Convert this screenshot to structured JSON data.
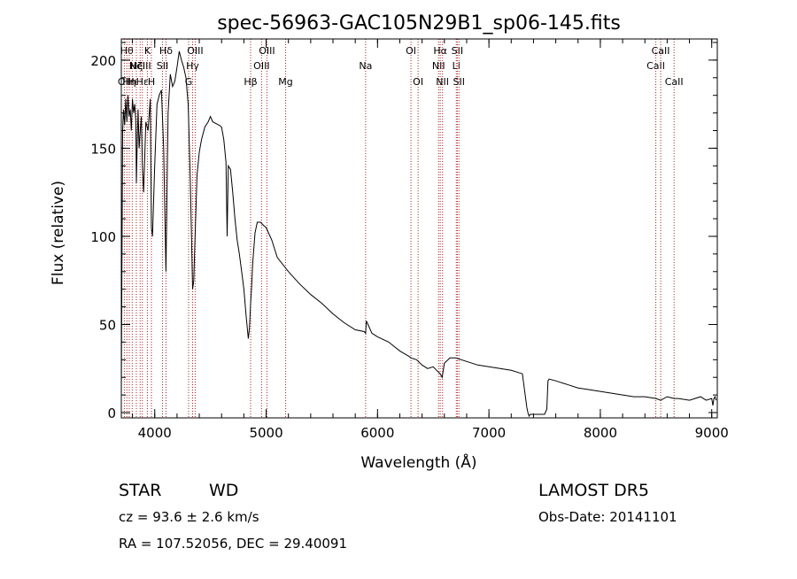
{
  "chart_data": {
    "type": "line",
    "title": "spec-56963-GAC105N29B1_sp06-145.fits",
    "xlabel": "Wavelength (Å)",
    "ylabel": "Flux (relative)",
    "xlim": [
      3700,
      9050
    ],
    "ylim": [
      -3,
      212
    ],
    "xticks": [
      4000,
      5000,
      6000,
      7000,
      8000,
      9000
    ],
    "yticks": [
      0,
      50,
      100,
      150,
      200
    ],
    "xminor_step": 200,
    "yminor_step": 10,
    "series": [
      {
        "x": [
          3700,
          3705,
          3712,
          3720,
          3730,
          3740,
          3750,
          3760,
          3770,
          3780,
          3790,
          3800,
          3810,
          3820,
          3830,
          3835,
          3840,
          3850,
          3860,
          3870,
          3880,
          3889,
          3900,
          3920,
          3940,
          3960,
          3970,
          3980,
          4000,
          4020,
          4040,
          4060,
          4080,
          4101,
          4120,
          4140,
          4160,
          4180,
          4200,
          4220,
          4240,
          4260,
          4280,
          4300,
          4320,
          4340,
          4350,
          4360,
          4380,
          4400,
          4420,
          4450,
          4480,
          4500,
          4520,
          4550,
          4580,
          4600,
          4620,
          4640,
          4650,
          4660,
          4680,
          4700,
          4720,
          4740,
          4760,
          4780,
          4800,
          4820,
          4840,
          4850,
          4861,
          4870,
          4880,
          4900,
          4920,
          4950,
          4980,
          5000,
          5050,
          5100,
          5200,
          5300,
          5400,
          5500,
          5600,
          5700,
          5800,
          5880,
          5893,
          5900,
          5950,
          6000,
          6100,
          6200,
          6280,
          6300,
          6350,
          6400,
          6450,
          6500,
          6530,
          6563,
          6580,
          6600,
          6650,
          6700,
          6800,
          6900,
          7000,
          7100,
          7200,
          7300,
          7340,
          7350,
          7360,
          7370,
          7380,
          7400,
          7450,
          7500,
          7520,
          7530,
          7540,
          7600,
          7700,
          7800,
          7900,
          8000,
          8100,
          8200,
          8300,
          8400,
          8500,
          8542,
          8600,
          8662,
          8700,
          8800,
          8850,
          8900,
          8950,
          9000,
          9010,
          9020,
          9030,
          9040
        ],
        "y": [
          10,
          75,
          160,
          172,
          163,
          178,
          165,
          180,
          168,
          172,
          160,
          178,
          170,
          175,
          165,
          130,
          145,
          172,
          150,
          160,
          168,
          140,
          125,
          165,
          160,
          178,
          105,
          100,
          140,
          175,
          180,
          183,
          150,
          80,
          170,
          192,
          185,
          188,
          196,
          205,
          200,
          196,
          190,
          175,
          130,
          70,
          75,
          95,
          135,
          148,
          155,
          162,
          165,
          168,
          165,
          164,
          163,
          162,
          155,
          142,
          100,
          140,
          138,
          125,
          110,
          98,
          90,
          80,
          70,
          55,
          42,
          48,
          62,
          72,
          85,
          102,
          108,
          108,
          106,
          105,
          98,
          88,
          80,
          73,
          67,
          62,
          56,
          51,
          47,
          46,
          45,
          52,
          45,
          43,
          40,
          35,
          32,
          31,
          30,
          27,
          25,
          26,
          24,
          22,
          20,
          28,
          31,
          31,
          29,
          27,
          26,
          25,
          24,
          22,
          3,
          0,
          -2,
          -1,
          -1,
          -1,
          -1,
          -1,
          2,
          18,
          19,
          18,
          16,
          14,
          13,
          12,
          11,
          10,
          9,
          9,
          8,
          7,
          9,
          8,
          8,
          7,
          8,
          9,
          7,
          8,
          4,
          8,
          9,
          7
        ]
      }
    ],
    "lines": [
      {
        "wl": 3727,
        "label": "OII",
        "row": 3
      },
      {
        "wl": 3750,
        "label": "Hθ",
        "row": 1
      },
      {
        "wl": 3771,
        "label": "Hη",
        "row": 3
      },
      {
        "wl": 3798,
        "label": "Hι",
        "row": 3
      },
      {
        "wl": 3835,
        "label": "Hζ",
        "row": 2
      },
      {
        "wl": 3869,
        "label": "NeIII",
        "row": 2
      },
      {
        "wl": 3889,
        "label": "Hε",
        "row": 3
      },
      {
        "wl": 3934,
        "label": "K",
        "row": 1
      },
      {
        "wl": 3970,
        "label": "H",
        "row": 3
      },
      {
        "wl": 4070,
        "label": "SII",
        "row": 2
      },
      {
        "wl": 4101,
        "label": "Hδ",
        "row": 1
      },
      {
        "wl": 4304,
        "label": "G",
        "row": 3
      },
      {
        "wl": 4340,
        "label": "Hγ",
        "row": 2
      },
      {
        "wl": 4363,
        "label": "OIII",
        "row": 1
      },
      {
        "wl": 4861,
        "label": "Hβ",
        "row": 3
      },
      {
        "wl": 4959,
        "label": "OIII",
        "row": 2
      },
      {
        "wl": 5007,
        "label": "OIII",
        "row": 1
      },
      {
        "wl": 5175,
        "label": "Mg",
        "row": 3
      },
      {
        "wl": 5893,
        "label": "Na",
        "row": 2
      },
      {
        "wl": 6300,
        "label": "OI",
        "row": 1
      },
      {
        "wl": 6364,
        "label": "OI",
        "row": 3
      },
      {
        "wl": 6548,
        "label": "NII",
        "row": 2
      },
      {
        "wl": 6563,
        "label": "Hα",
        "row": 1
      },
      {
        "wl": 6583,
        "label": "NII",
        "row": 3
      },
      {
        "wl": 6707,
        "label": "Li",
        "row": 2
      },
      {
        "wl": 6716,
        "label": "SII",
        "row": 1
      },
      {
        "wl": 6731,
        "label": "SII",
        "row": 3
      },
      {
        "wl": 8498,
        "label": "CaII",
        "row": 2
      },
      {
        "wl": 8542,
        "label": "CaII",
        "row": 1
      },
      {
        "wl": 8662,
        "label": "CaII",
        "row": 3
      }
    ],
    "line_color": "#b02020",
    "grid": false,
    "legend": "none"
  },
  "info": {
    "class": "STAR",
    "subclass": "WD",
    "survey": "LAMOST DR5",
    "cz": "cz = 93.6 ± 2.6 km/s",
    "obs_date": "Obs-Date: 20141101",
    "coords": "RA = 107.52056, DEC =  29.40091"
  }
}
